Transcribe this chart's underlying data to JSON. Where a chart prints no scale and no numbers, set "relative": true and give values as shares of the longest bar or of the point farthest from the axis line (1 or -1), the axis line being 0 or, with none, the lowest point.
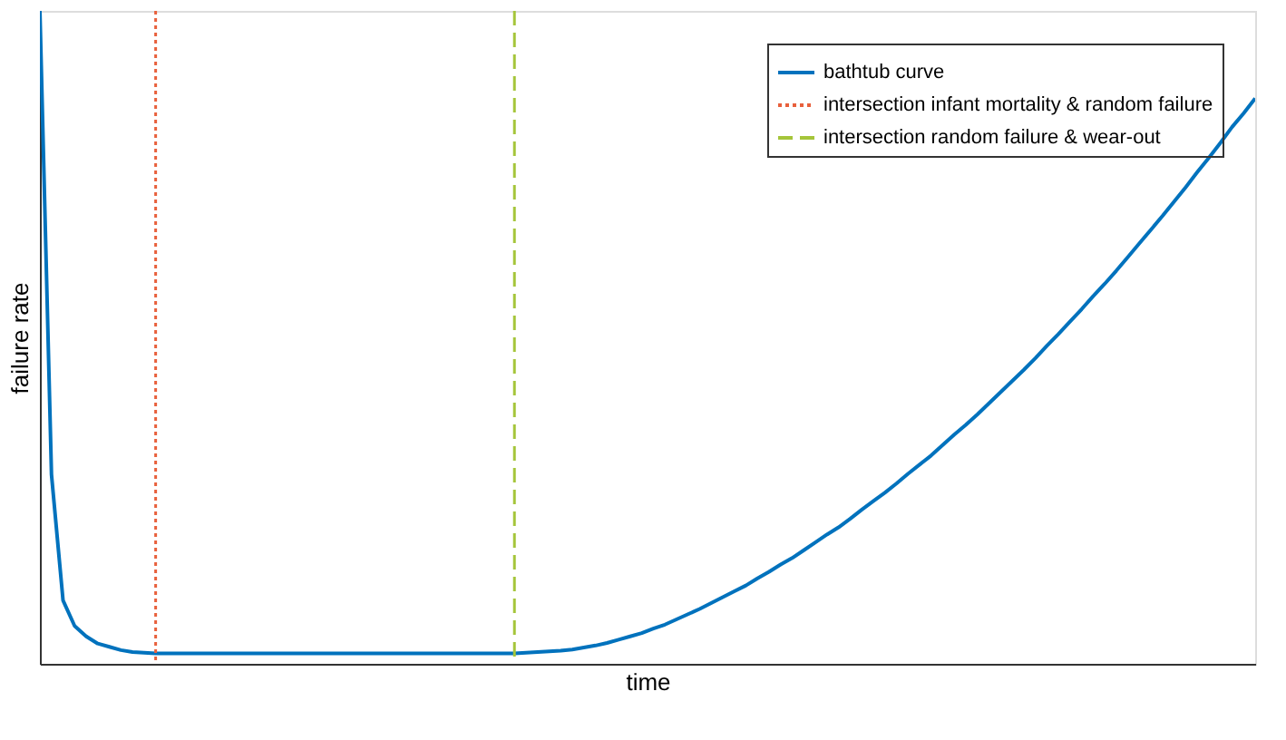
{
  "chart_data": {
    "type": "line",
    "xlabel": "time",
    "ylabel": "failure rate",
    "relative": true,
    "legend": "top right",
    "grid": false,
    "marker": "none",
    "categories": [
      null,
      null,
      null,
      null,
      null,
      null,
      null,
      null,
      null,
      null,
      null,
      null,
      null,
      null,
      null,
      null,
      null,
      null,
      null,
      null,
      null,
      null,
      null,
      null,
      null,
      null,
      null,
      null,
      null,
      null,
      null,
      null,
      null,
      null,
      null,
      null,
      null,
      null,
      null,
      null,
      null,
      null,
      null,
      null,
      null,
      null,
      null,
      null,
      null,
      null,
      null,
      null,
      null,
      null,
      null,
      null,
      null,
      null,
      null,
      null,
      null,
      null,
      null,
      null,
      null,
      null,
      null,
      null,
      null,
      null,
      null,
      null,
      null,
      null,
      null,
      null,
      null,
      null,
      null,
      null,
      null,
      null,
      null,
      null,
      null,
      null,
      null,
      null,
      null,
      null,
      null,
      null,
      null,
      null,
      null,
      null,
      null,
      null,
      null,
      null,
      null,
      null,
      null,
      null,
      null,
      null
    ],
    "series": [
      {
        "name": "bathtub curve",
        "color": "#0072bd",
        "line_style": "solid",
        "values": [
          1.0,
          0.29,
          0.097,
          0.058,
          0.042,
          0.031,
          0.026,
          0.021,
          0.018,
          0.017,
          0.016,
          0.016,
          0.016,
          0.016,
          0.016,
          0.016,
          0.016,
          0.016,
          0.016,
          0.016,
          0.016,
          0.016,
          0.016,
          0.016,
          0.016,
          0.016,
          0.016,
          0.016,
          0.016,
          0.016,
          0.016,
          0.016,
          0.016,
          0.016,
          0.016,
          0.016,
          0.016,
          0.016,
          0.016,
          0.016,
          0.016,
          0.016,
          0.017,
          0.018,
          0.019,
          0.02,
          0.022,
          0.025,
          0.028,
          0.032,
          0.037,
          0.042,
          0.047,
          0.054,
          0.06,
          0.068,
          0.076,
          0.084,
          0.093,
          0.102,
          0.111,
          0.12,
          0.131,
          0.141,
          0.152,
          0.162,
          0.174,
          0.186,
          0.198,
          0.209,
          0.222,
          0.236,
          0.249,
          0.262,
          0.276,
          0.291,
          0.305,
          0.319,
          0.335,
          0.351,
          0.366,
          0.382,
          0.399,
          0.416,
          0.433,
          0.45,
          0.468,
          0.487,
          0.505,
          0.524,
          0.543,
          0.563,
          0.582,
          0.602,
          0.623,
          0.644,
          0.665,
          0.686,
          0.708,
          0.73,
          0.753,
          0.775,
          0.798,
          0.822,
          0.843,
          0.866
        ]
      }
    ],
    "ref_lines": [
      {
        "axis": "x",
        "label": "intersection infant mortality & random failure",
        "color": "#e8603c",
        "line_style": "dotted"
      },
      {
        "axis": "x",
        "label": "intersection random failure & wear-out",
        "color": "#a5c53a",
        "line_style": "dashed"
      }
    ]
  }
}
